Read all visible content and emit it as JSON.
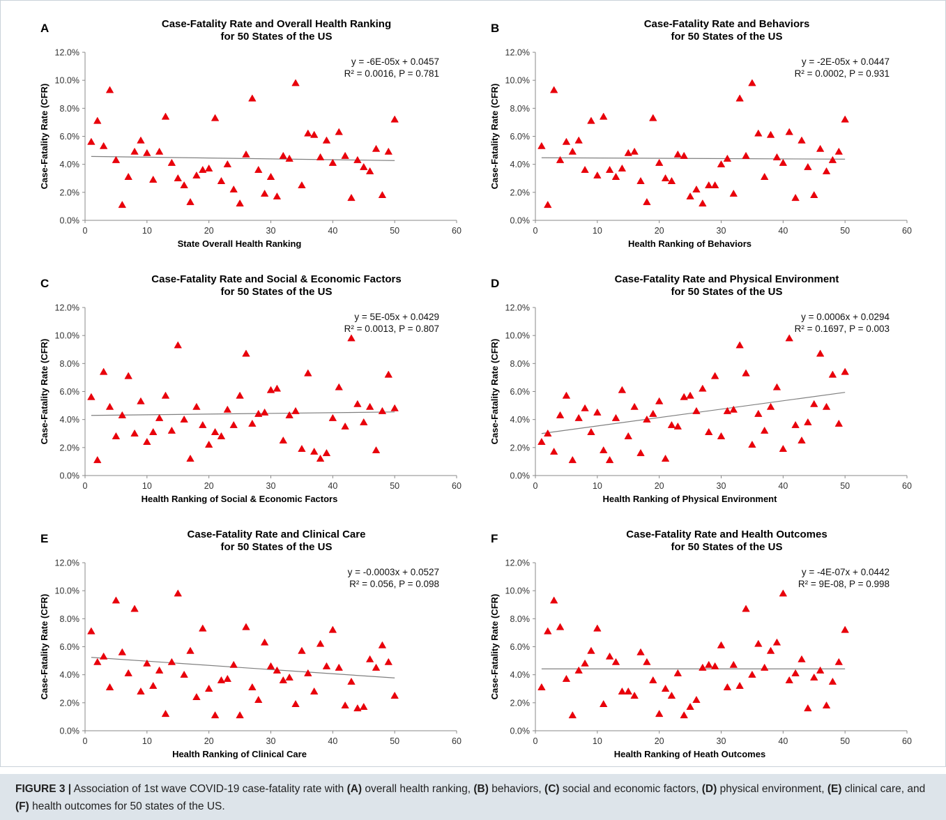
{
  "caption": {
    "label": "FIGURE 3 |",
    "parts": [
      {
        "t": " Association of 1st wave COVID-19 case-fatality rate with ",
        "b": false
      },
      {
        "t": "(A)",
        "b": true
      },
      {
        "t": " overall health ranking, ",
        "b": false
      },
      {
        "t": "(B)",
        "b": true
      },
      {
        "t": " behaviors, ",
        "b": false
      },
      {
        "t": "(C)",
        "b": true
      },
      {
        "t": " social and economic factors, ",
        "b": false
      },
      {
        "t": "(D)",
        "b": true
      },
      {
        "t": " physical environment, ",
        "b": false
      },
      {
        "t": "(E)",
        "b": true
      },
      {
        "t": " clinical care, and ",
        "b": false
      },
      {
        "t": "(F)",
        "b": true
      },
      {
        "t": " health outcomes for 50 states of the US.",
        "b": false
      }
    ]
  },
  "chart_data": [
    {
      "panel": "A",
      "type": "scatter",
      "title": [
        "Case-Fatality Rate and Overall Health Ranking",
        "for 50 States of the US"
      ],
      "xlabel": "State Overall Health Ranking",
      "ylabel": "Case-Fatality Rate (CFR)",
      "xlim": [
        0,
        60
      ],
      "ylim": [
        0,
        0.12
      ],
      "xticks": [
        "0",
        "10",
        "20",
        "30",
        "40",
        "50",
        "60"
      ],
      "yticks": [
        "0.0%",
        "2.0%",
        "4.0%",
        "6.0%",
        "8.0%",
        "10.0%",
        "12.0%"
      ],
      "equation": "y = -6E-05x + 0.0457",
      "r2": "R² = 0.0016, P = 0.781",
      "trend": {
        "slope": -6e-05,
        "intercept": 0.0457
      },
      "marker_color": "#e8000b",
      "grid": false,
      "y": [
        0.056,
        0.071,
        0.053,
        0.093,
        0.043,
        0.011,
        0.031,
        0.049,
        0.057,
        0.048,
        0.029,
        0.049,
        0.074,
        0.041,
        0.03,
        0.025,
        0.013,
        0.032,
        0.036,
        0.037,
        0.073,
        0.028,
        0.04,
        0.022,
        0.012,
        0.047,
        0.087,
        0.036,
        0.019,
        0.031,
        0.017,
        0.046,
        0.044,
        0.098,
        0.025,
        0.062,
        0.061,
        0.045,
        0.057,
        0.041,
        0.063,
        0.046,
        0.016,
        0.043,
        0.038,
        0.035,
        0.051,
        0.018,
        0.049,
        0.072
      ]
    },
    {
      "panel": "B",
      "type": "scatter",
      "title": [
        "Case-Fatality Rate and Behaviors",
        "for 50 States of the US"
      ],
      "xlabel": "Health Ranking of Behaviors",
      "ylabel": "Case-Fatality Rate (CFR)",
      "xlim": [
        0,
        60
      ],
      "ylim": [
        0,
        0.12
      ],
      "xticks": [
        "0",
        "10",
        "20",
        "30",
        "40",
        "50",
        "60"
      ],
      "yticks": [
        "0.0%",
        "2.0%",
        "4.0%",
        "6.0%",
        "8.0%",
        "10.0%",
        "12.0%"
      ],
      "equation": "y = -2E-05x + 0.0447",
      "r2": "R² = 0.0002, P = 0.931",
      "trend": {
        "slope": -2e-05,
        "intercept": 0.0447
      },
      "marker_color": "#e8000b",
      "grid": false,
      "y": [
        0.053,
        0.011,
        0.093,
        0.043,
        0.056,
        0.049,
        0.057,
        0.036,
        0.071,
        0.032,
        0.074,
        0.036,
        0.031,
        0.037,
        0.048,
        0.049,
        0.028,
        0.013,
        0.073,
        0.041,
        0.03,
        0.028,
        0.047,
        0.046,
        0.017,
        0.022,
        0.012,
        0.025,
        0.025,
        0.04,
        0.044,
        0.019,
        0.087,
        0.046,
        0.098,
        0.062,
        0.031,
        0.061,
        0.045,
        0.041,
        0.063,
        0.016,
        0.057,
        0.038,
        0.018,
        0.051,
        0.035,
        0.043,
        0.049,
        0.072
      ]
    },
    {
      "panel": "C",
      "type": "scatter",
      "title": [
        "Case-Fatality Rate and Social & Economic Factors",
        "for 50 States of the US"
      ],
      "xlabel": "Health Ranking of Social & Economic Factors",
      "ylabel": "Case-Fatality Rate (CFR)",
      "xlim": [
        0,
        60
      ],
      "ylim": [
        0,
        0.12
      ],
      "xticks": [
        "0",
        "10",
        "20",
        "30",
        "40",
        "50",
        "60"
      ],
      "yticks": [
        "0.0%",
        "2.0%",
        "4.0%",
        "6.0%",
        "8.0%",
        "10.0%",
        "12.0%"
      ],
      "equation": "y = 5E-05x + 0.0429",
      "r2": "R² = 0.0013, P = 0.807",
      "trend": {
        "slope": 5e-05,
        "intercept": 0.0429
      },
      "marker_color": "#e8000b",
      "grid": false,
      "y": [
        0.056,
        0.011,
        0.074,
        0.049,
        0.028,
        0.043,
        0.071,
        0.03,
        0.053,
        0.024,
        0.031,
        0.041,
        0.057,
        0.032,
        0.093,
        0.04,
        0.012,
        0.049,
        0.036,
        0.022,
        0.031,
        0.028,
        0.047,
        0.036,
        0.057,
        0.087,
        0.037,
        0.044,
        0.045,
        0.061,
        0.062,
        0.025,
        0.043,
        0.046,
        0.019,
        0.073,
        0.017,
        0.012,
        0.016,
        0.041,
        0.063,
        0.035,
        0.098,
        0.051,
        0.038,
        0.049,
        0.018,
        0.046,
        0.072,
        0.048
      ]
    },
    {
      "panel": "D",
      "type": "scatter",
      "title": [
        "Case-Fatality Rate and Physical Environment",
        "for 50 States of the US"
      ],
      "xlabel": "Health Ranking of Physical Environment",
      "ylabel": "Case-Fatality Rate (CFR)",
      "xlim": [
        0,
        60
      ],
      "ylim": [
        0,
        0.12
      ],
      "xticks": [
        "0",
        "10",
        "20",
        "30",
        "40",
        "50",
        "60"
      ],
      "yticks": [
        "0.0%",
        "2.0%",
        "4.0%",
        "6.0%",
        "8.0%",
        "10.0%",
        "12.0%"
      ],
      "equation": "y = 0.0006x + 0.0294",
      "r2": "R² = 0.1697, P = 0.003",
      "trend": {
        "slope": 0.0006,
        "intercept": 0.0294
      },
      "marker_color": "#e8000b",
      "grid": false,
      "y": [
        0.024,
        0.03,
        0.017,
        0.043,
        0.057,
        0.011,
        0.041,
        0.048,
        0.031,
        0.045,
        0.018,
        0.011,
        0.041,
        0.061,
        0.028,
        0.049,
        0.016,
        0.04,
        0.044,
        0.053,
        0.012,
        0.036,
        0.035,
        0.056,
        0.057,
        0.046,
        0.062,
        0.031,
        0.071,
        0.028,
        0.046,
        0.047,
        0.093,
        0.073,
        0.022,
        0.044,
        0.032,
        0.049,
        0.063,
        0.019,
        0.098,
        0.036,
        0.025,
        0.038,
        0.051,
        0.087,
        0.049,
        0.072,
        0.037,
        0.074
      ]
    },
    {
      "panel": "E",
      "type": "scatter",
      "title": [
        "Case-Fatality Rate and Clinical Care",
        "for 50 States of the US"
      ],
      "xlabel": "Health Ranking of Clinical Care",
      "ylabel": "Case-Fatality Rate (CFR)",
      "xlim": [
        0,
        60
      ],
      "ylim": [
        0,
        0.12
      ],
      "xticks": [
        "0",
        "10",
        "20",
        "30",
        "40",
        "50",
        "60"
      ],
      "yticks": [
        "0.0%",
        "2.0%",
        "4.0%",
        "6.0%",
        "8.0%",
        "10.0%",
        "12.0%"
      ],
      "equation": "y = -0.0003x + 0.0527",
      "r2": "R² = 0.056, P = 0.098",
      "trend": {
        "slope": -0.0003,
        "intercept": 0.0527
      },
      "marker_color": "#e8000b",
      "grid": false,
      "y": [
        0.071,
        0.049,
        0.053,
        0.031,
        0.093,
        0.056,
        0.041,
        0.087,
        0.028,
        0.048,
        0.032,
        0.043,
        0.012,
        0.049,
        0.098,
        0.04,
        0.057,
        0.024,
        0.073,
        0.03,
        0.011,
        0.036,
        0.037,
        0.047,
        0.011,
        0.074,
        0.031,
        0.022,
        0.063,
        0.046,
        0.043,
        0.036,
        0.038,
        0.019,
        0.057,
        0.041,
        0.028,
        0.062,
        0.046,
        0.072,
        0.045,
        0.018,
        0.035,
        0.016,
        0.017,
        0.051,
        0.045,
        0.061,
        0.049,
        0.025
      ]
    },
    {
      "panel": "F",
      "type": "scatter",
      "title": [
        "Case-Fatality Rate and Health Outcomes",
        "for 50 States of the US"
      ],
      "xlabel": "Health Ranking of Heath Outcomes",
      "ylabel": "Case-Fatality Rate (CFR)",
      "xlim": [
        0,
        60
      ],
      "ylim": [
        0,
        0.12
      ],
      "xticks": [
        "0",
        "10",
        "20",
        "30",
        "40",
        "50",
        "60"
      ],
      "yticks": [
        "0.0%",
        "2.0%",
        "4.0%",
        "6.0%",
        "8.0%",
        "10.0%",
        "12.0%"
      ],
      "equation": "y = -4E-07x + 0.0442",
      "r2": "R² = 9E-08, P = 0.998",
      "trend": {
        "slope": -4e-07,
        "intercept": 0.0442
      },
      "marker_color": "#e8000b",
      "grid": false,
      "y": [
        0.031,
        0.071,
        0.093,
        0.074,
        0.037,
        0.011,
        0.043,
        0.048,
        0.057,
        0.073,
        0.019,
        0.053,
        0.049,
        0.028,
        0.028,
        0.025,
        0.056,
        0.049,
        0.036,
        0.012,
        0.03,
        0.025,
        0.041,
        0.011,
        0.017,
        0.022,
        0.045,
        0.047,
        0.046,
        0.061,
        0.031,
        0.047,
        0.032,
        0.087,
        0.04,
        0.062,
        0.045,
        0.057,
        0.063,
        0.098,
        0.036,
        0.041,
        0.051,
        0.016,
        0.038,
        0.043,
        0.018,
        0.035,
        0.049,
        0.072
      ]
    }
  ]
}
